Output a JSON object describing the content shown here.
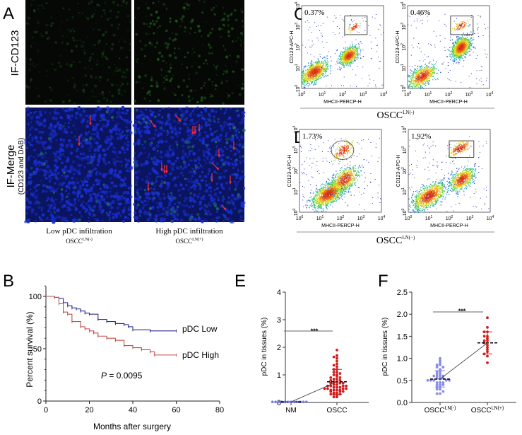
{
  "panel_labels": {
    "a": "A",
    "b": "B",
    "c": "C",
    "d": "D",
    "e": "E",
    "f": "F"
  },
  "panel_a": {
    "row_top_label": "IF-CD123",
    "row_bottom_label": "IF-Merge",
    "row_bottom_sublabel": "(CD123 and DAB)",
    "col_left_label": "Low pDC infiltration",
    "col_right_label": "High pDC infiltration",
    "col_left_group": {
      "base": "OSCC",
      "sup": "LN(-)"
    },
    "col_right_group": {
      "base": "OSCC",
      "sup": "LN(+)"
    },
    "colors": {
      "nuclei": "#1a2fd0",
      "cd123": "#2f8a2a",
      "arrows": "#ff3030"
    }
  },
  "flow": {
    "x_axis_label": "MHCII-PERCP-H",
    "y_axis_label": "CD123-APC-H",
    "ticks": [
      {
        "base": "10",
        "exp": "0"
      },
      {
        "base": "10",
        "exp": "1"
      },
      {
        "base": "10",
        "exp": "2"
      },
      {
        "base": "10",
        "exp": "3"
      },
      {
        "base": "10",
        "exp": "4"
      }
    ],
    "c_group": {
      "base": "OSCC",
      "sup": "LN(-)"
    },
    "d_group": {
      "base": "OSCC",
      "sup": "LN(−)"
    },
    "plots": [
      {
        "panel": "C",
        "percent": "0.37%",
        "gate": "rectangle"
      },
      {
        "panel": "C",
        "percent": "0.46%",
        "gate": "rectangle"
      },
      {
        "panel": "D",
        "percent": "1.73%",
        "gate": "ellipse"
      },
      {
        "panel": "D",
        "percent": "1.92%",
        "gate": "rectangle"
      }
    ]
  },
  "chart_data": [
    {
      "panel": "B",
      "type": "line",
      "xlabel": "Months after surgery",
      "ylabel": "Percent survival (%)",
      "xlim": [
        0,
        80
      ],
      "ylim": [
        0,
        100
      ],
      "xticks": [
        "0",
        "20",
        "40",
        "60",
        "80"
      ],
      "yticks": [
        "0",
        "50",
        "100"
      ],
      "annotation": {
        "italic": "P",
        "text": " = 0.0095"
      },
      "series": [
        {
          "name": "pDC Low",
          "color": "#2a2f8f",
          "x": [
            0,
            4,
            6,
            8,
            10,
            12,
            14,
            16,
            18,
            20,
            24,
            28,
            32,
            36,
            38,
            40,
            48,
            60
          ],
          "y": [
            100,
            99,
            98,
            94,
            91,
            89,
            88,
            86,
            84,
            83,
            78,
            76,
            74,
            73,
            71,
            68,
            67,
            67
          ]
        },
        {
          "name": "pDC High",
          "color": "#c0504d",
          "x": [
            0,
            4,
            6,
            8,
            10,
            12,
            16,
            18,
            20,
            22,
            24,
            28,
            32,
            36,
            40,
            44,
            48,
            50,
            60
          ],
          "y": [
            100,
            99,
            93,
            85,
            83,
            76,
            71,
            69,
            67,
            65,
            62,
            60,
            58,
            53,
            51,
            49,
            47,
            44,
            44
          ]
        }
      ]
    },
    {
      "panel": "E",
      "type": "scatter",
      "ylabel": "pDC in tissues (%)",
      "ylim": [
        0,
        4
      ],
      "yticks": [
        "0",
        "1",
        "2",
        "3",
        "4"
      ],
      "categories": [
        "NM",
        "OSCC"
      ],
      "significance": "***",
      "groups": [
        {
          "category": "NM",
          "color": "#7b7fe0",
          "mean": 0.02,
          "sd_range": [
            0.0,
            0.04
          ],
          "values": [
            0.02,
            0.02,
            0.02,
            0.02,
            0.02,
            0.02,
            0.02,
            0.02,
            0.02,
            0.02,
            0.02,
            0.02
          ]
        },
        {
          "category": "OSCC",
          "color": "#d01c1c",
          "mean": 0.75,
          "sd_range": [
            0.3,
            1.2
          ],
          "values": [
            0.2,
            0.2,
            0.25,
            0.3,
            0.3,
            0.3,
            0.35,
            0.35,
            0.4,
            0.4,
            0.4,
            0.45,
            0.45,
            0.45,
            0.45,
            0.5,
            0.5,
            0.5,
            0.5,
            0.55,
            0.55,
            0.55,
            0.6,
            0.6,
            0.6,
            0.6,
            0.65,
            0.65,
            0.7,
            0.7,
            0.7,
            0.75,
            0.75,
            0.8,
            0.8,
            0.85,
            0.85,
            0.9,
            0.9,
            0.95,
            1.0,
            1.0,
            1.05,
            1.1,
            1.1,
            1.2,
            1.2,
            1.3,
            1.35,
            1.4,
            1.5,
            1.6,
            1.65,
            1.7,
            1.9
          ]
        }
      ]
    },
    {
      "panel": "F",
      "type": "scatter",
      "ylabel": "pDC in tissues (%)",
      "ylim": [
        0,
        2.5
      ],
      "yticks": [
        "0.0",
        "0.5",
        "1.0",
        "1.5",
        "2.0",
        "2.5"
      ],
      "categories": [
        {
          "base": "OSCC",
          "sup": "LN(-)"
        },
        {
          "base": "OSCC",
          "sup": "LN(+)"
        }
      ],
      "significance": "***",
      "groups": [
        {
          "category": "OSCC LN(-)",
          "color": "#8a8ce6",
          "mean": 0.53,
          "sd_range": [
            0.35,
            0.72
          ],
          "values": [
            0.2,
            0.2,
            0.25,
            0.3,
            0.3,
            0.35,
            0.35,
            0.4,
            0.4,
            0.4,
            0.45,
            0.45,
            0.45,
            0.5,
            0.5,
            0.5,
            0.5,
            0.5,
            0.55,
            0.55,
            0.55,
            0.6,
            0.6,
            0.6,
            0.6,
            0.65,
            0.65,
            0.7,
            0.7,
            0.75,
            0.8,
            0.8,
            0.85,
            0.85,
            0.9,
            0.95,
            1.0
          ]
        },
        {
          "category": "OSCC LN(+)",
          "color": "#d01c1c",
          "mean": 1.35,
          "sd_range": [
            1.1,
            1.6
          ],
          "values": [
            0.9,
            1.05,
            1.1,
            1.15,
            1.2,
            1.25,
            1.3,
            1.35,
            1.4,
            1.4,
            1.45,
            1.5,
            1.5,
            1.6,
            1.6,
            1.7,
            1.92
          ]
        }
      ]
    }
  ]
}
